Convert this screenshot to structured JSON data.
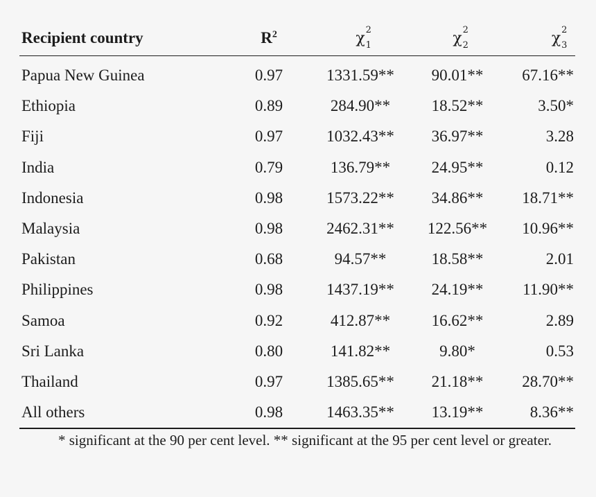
{
  "table": {
    "headers": {
      "country": "Recipient country",
      "r2_base": "R",
      "r2_exp": "2",
      "chi_symbol": "χ",
      "chi_exp": "2",
      "chi1_sub": "1",
      "chi2_sub": "2",
      "chi3_sub": "3"
    },
    "rows": [
      {
        "country": "Papua New Guinea",
        "r2": "0.97",
        "chi1": "1331.59**",
        "chi2": "90.01**",
        "chi3": "67.16**"
      },
      {
        "country": "Ethiopia",
        "r2": "0.89",
        "chi1": "284.90**",
        "chi2": "18.52**",
        "chi3": "3.50*"
      },
      {
        "country": "Fiji",
        "r2": "0.97",
        "chi1": "1032.43**",
        "chi2": "36.97**",
        "chi3": "3.28"
      },
      {
        "country": "India",
        "r2": "0.79",
        "chi1": "136.79**",
        "chi2": "24.95**",
        "chi3": "0.12"
      },
      {
        "country": "Indonesia",
        "r2": "0.98",
        "chi1": "1573.22**",
        "chi2": "34.86**",
        "chi3": "18.71**"
      },
      {
        "country": "Malaysia",
        "r2": "0.98",
        "chi1": "2462.31**",
        "chi2": "122.56**",
        "chi3": "10.96**"
      },
      {
        "country": "Pakistan",
        "r2": "0.68",
        "chi1": "94.57**",
        "chi2": "18.58**",
        "chi3": "2.01"
      },
      {
        "country": "Philippines",
        "r2": "0.98",
        "chi1": "1437.19**",
        "chi2": "24.19**",
        "chi3": "11.90**"
      },
      {
        "country": "Samoa",
        "r2": "0.92",
        "chi1": "412.87**",
        "chi2": "16.62**",
        "chi3": "2.89"
      },
      {
        "country": "Sri Lanka",
        "r2": "0.80",
        "chi1": "141.82**",
        "chi2": "9.80*",
        "chi3": "0.53"
      },
      {
        "country": "Thailand",
        "r2": "0.97",
        "chi1": "1385.65**",
        "chi2": "21.18**",
        "chi3": "28.70**"
      },
      {
        "country": "All others",
        "r2": "0.98",
        "chi1": "1463.35**",
        "chi2": "13.19**",
        "chi3": "8.36**"
      }
    ],
    "footnote": "* significant at the 90 per cent level. ** significant at the 95 per cent level or greater."
  }
}
